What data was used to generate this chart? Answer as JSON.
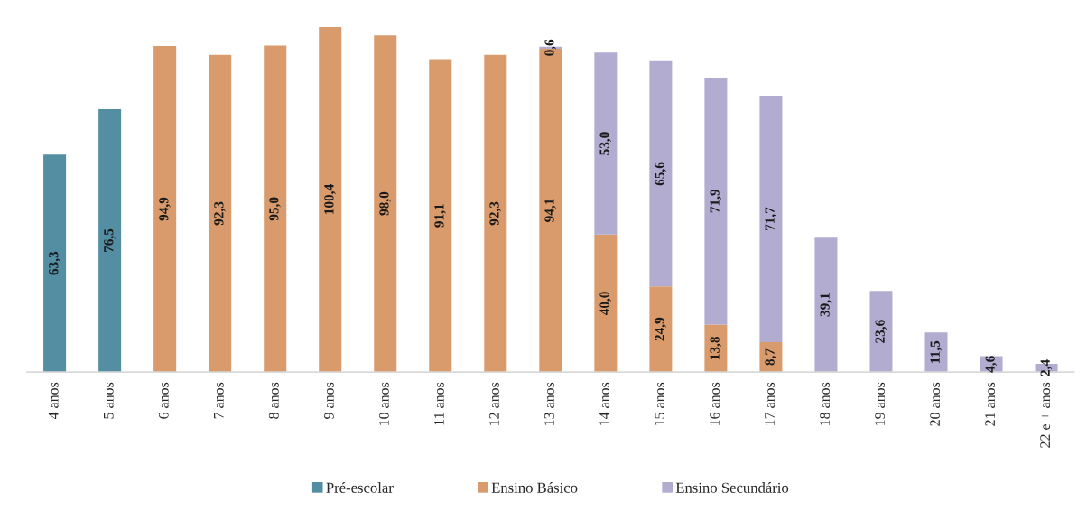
{
  "chart_data": {
    "type": "bar",
    "stacked": true,
    "legend": "bottom",
    "grid": false,
    "tick_labels": "x",
    "categories": [
      "4 anos",
      "5 anos",
      "6 anos",
      "7 anos",
      "8 anos",
      "9 anos",
      "10 anos",
      "11 anos",
      "12 anos",
      "13 anos",
      "14 anos",
      "15 anos",
      "16 anos",
      "17 anos",
      "18 anos",
      "19 anos",
      "20 anos",
      "21 anos",
      "22 e + anos"
    ],
    "series": [
      {
        "name": "Pré-escolar",
        "color": "#538ea3",
        "values": [
          63.3,
          76.5,
          null,
          null,
          null,
          null,
          null,
          null,
          null,
          null,
          null,
          null,
          null,
          null,
          null,
          null,
          null,
          null,
          null
        ],
        "value_labels": [
          "63,3",
          "76,5",
          null,
          null,
          null,
          null,
          null,
          null,
          null,
          null,
          null,
          null,
          null,
          null,
          null,
          null,
          null,
          null,
          null
        ]
      },
      {
        "name": "Ensino Básico",
        "color": "#d99b6c",
        "values": [
          null,
          null,
          94.9,
          92.3,
          95.0,
          100.4,
          98.0,
          91.1,
          92.3,
          94.1,
          40.0,
          24.9,
          13.8,
          8.7,
          null,
          null,
          null,
          null,
          null
        ],
        "value_labels": [
          null,
          null,
          "94,9",
          "92,3",
          "95,0",
          "100,4",
          "98,0",
          "91,1",
          "92,3",
          "94,1",
          "40,0",
          "24,9",
          "13,8",
          "8,7",
          null,
          null,
          null,
          null,
          null
        ]
      },
      {
        "name": "Ensino Secundário",
        "color": "#b2acd0",
        "values": [
          null,
          null,
          null,
          null,
          null,
          null,
          null,
          null,
          null,
          0.6,
          53.0,
          65.6,
          71.9,
          71.7,
          39.1,
          23.6,
          11.5,
          4.6,
          2.4
        ],
        "value_labels": [
          null,
          null,
          null,
          null,
          null,
          null,
          null,
          null,
          null,
          "0,6",
          "53,0",
          "65,6",
          "71,9",
          "71,7",
          "39,1",
          "23,6",
          "11,5",
          "4,6",
          "2,4"
        ]
      }
    ]
  }
}
